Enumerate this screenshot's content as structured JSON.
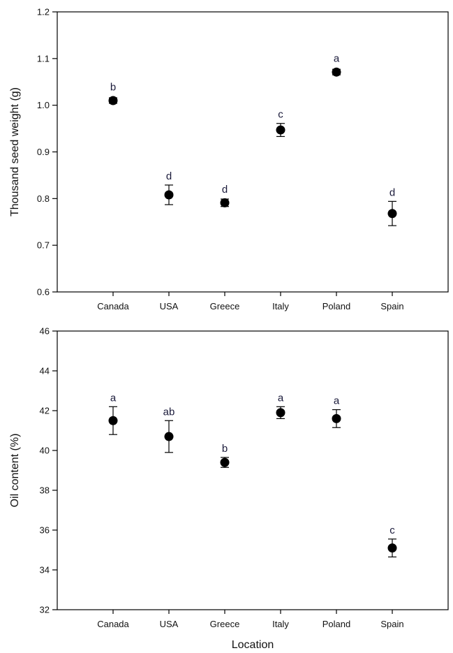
{
  "chart_data": [
    {
      "type": "scatter",
      "categories": [
        "Canada",
        "USA",
        "Greece",
        "Italy",
        "Poland",
        "Spain"
      ],
      "values": [
        1.01,
        0.808,
        0.791,
        0.947,
        1.071,
        0.768
      ],
      "errors": [
        0.006,
        0.021,
        0.008,
        0.014,
        0.006,
        0.026
      ],
      "letters": [
        "b",
        "d",
        "d",
        "c",
        "a",
        "d"
      ],
      "xlabel": "",
      "ylabel": "Thousand seed weight (g)",
      "ylim": [
        0.6,
        1.2
      ],
      "yticks": [
        "0.6",
        "0.7",
        "0.8",
        "0.9",
        "1.0",
        "1.1",
        "1.2"
      ],
      "marker_color": "#000000"
    },
    {
      "type": "scatter",
      "categories": [
        "Canada",
        "USA",
        "Greece",
        "Italy",
        "Poland",
        "Spain"
      ],
      "values": [
        41.5,
        40.7,
        39.4,
        41.9,
        41.6,
        35.1
      ],
      "errors": [
        0.7,
        0.8,
        0.25,
        0.3,
        0.45,
        0.45
      ],
      "letters": [
        "a",
        "ab",
        "b",
        "a",
        "a",
        "c"
      ],
      "xlabel": "Location",
      "ylabel": "Oil content (%)",
      "ylim": [
        32,
        46
      ],
      "yticks": [
        "32",
        "34",
        "36",
        "38",
        "40",
        "42",
        "44",
        "46"
      ],
      "marker_color": "#000000"
    }
  ]
}
